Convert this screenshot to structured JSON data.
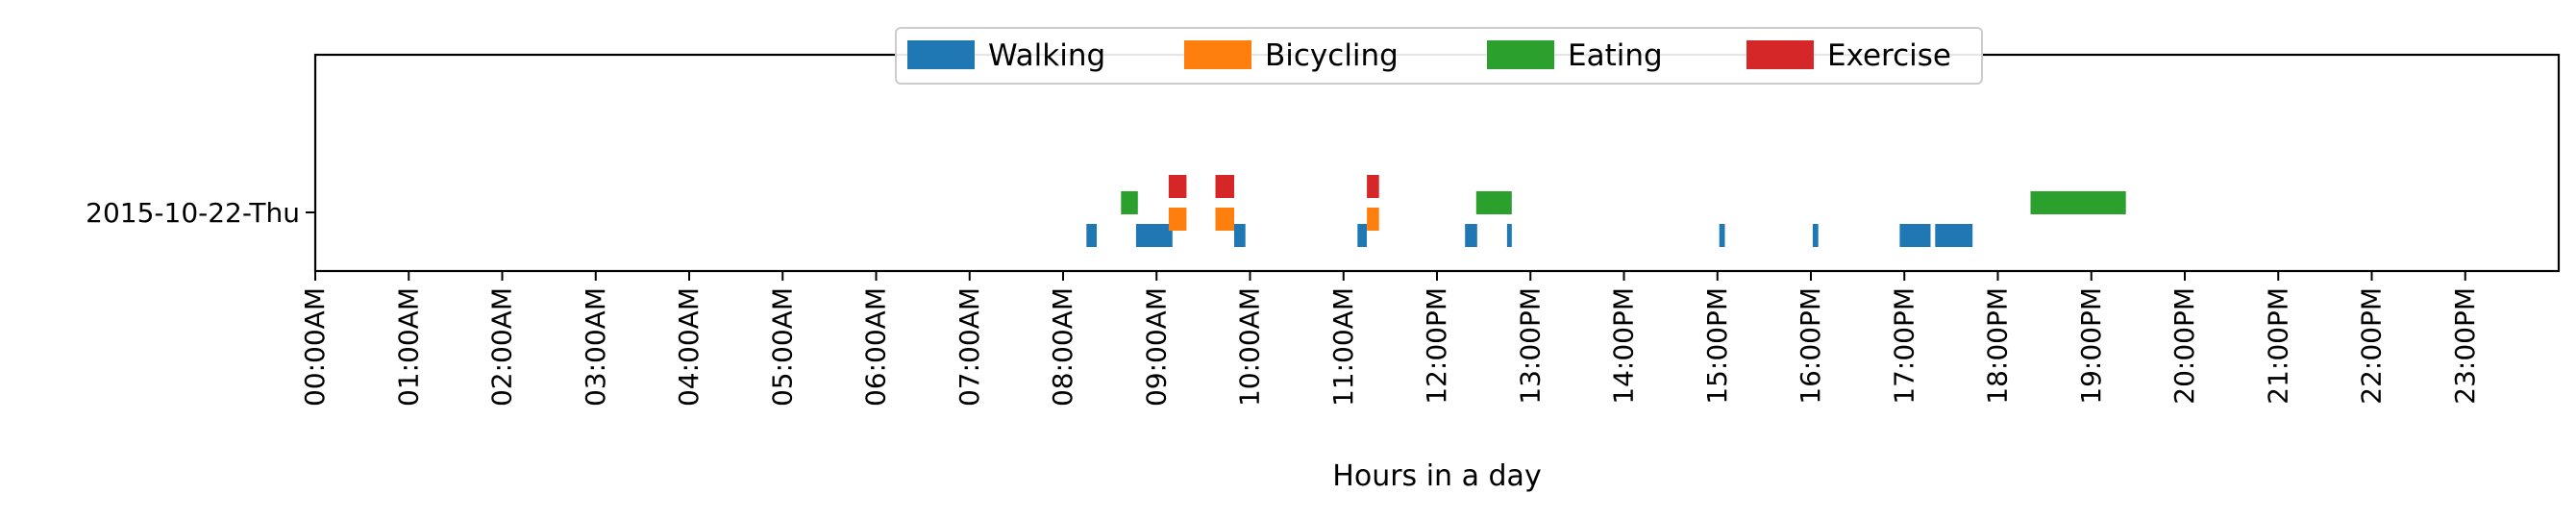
{
  "chart_data": {
    "type": "timeline",
    "xlabel": "Hours in a day",
    "xlim": [
      0,
      24
    ],
    "x_tick_labels": [
      "00:00AM",
      "01:00AM",
      "02:00AM",
      "03:00AM",
      "04:00AM",
      "05:00AM",
      "06:00AM",
      "07:00AM",
      "08:00AM",
      "09:00AM",
      "10:00AM",
      "11:00AM",
      "12:00PM",
      "13:00PM",
      "14:00PM",
      "15:00PM",
      "16:00PM",
      "17:00PM",
      "18:00PM",
      "19:00PM",
      "20:00PM",
      "21:00PM",
      "22:00PM",
      "23:00PM"
    ],
    "y_categories": [
      "2015-10-22-Thu"
    ],
    "legend_position": "top-center",
    "grid": false,
    "series": [
      {
        "name": "Walking",
        "color": "#1f77b4",
        "intervals": [
          [
            8.25,
            8.36
          ],
          [
            8.78,
            9.17
          ],
          [
            9.83,
            9.95
          ],
          [
            11.15,
            11.25
          ],
          [
            12.3,
            12.43
          ],
          [
            12.75,
            12.8
          ],
          [
            15.02,
            15.08
          ],
          [
            16.02,
            16.08
          ],
          [
            16.95,
            17.28
          ],
          [
            17.33,
            17.73
          ]
        ]
      },
      {
        "name": "Bicycling",
        "color": "#ff7f0e",
        "intervals": [
          [
            9.13,
            9.32
          ],
          [
            9.63,
            9.83
          ],
          [
            11.25,
            11.38
          ]
        ]
      },
      {
        "name": "Eating",
        "color": "#2ca02c",
        "intervals": [
          [
            8.62,
            8.8
          ],
          [
            12.42,
            12.8
          ],
          [
            18.35,
            19.37
          ]
        ]
      },
      {
        "name": "Exercise",
        "color": "#d62728",
        "intervals": [
          [
            9.13,
            9.32
          ],
          [
            9.63,
            9.83
          ],
          [
            11.25,
            11.38
          ]
        ]
      }
    ]
  }
}
